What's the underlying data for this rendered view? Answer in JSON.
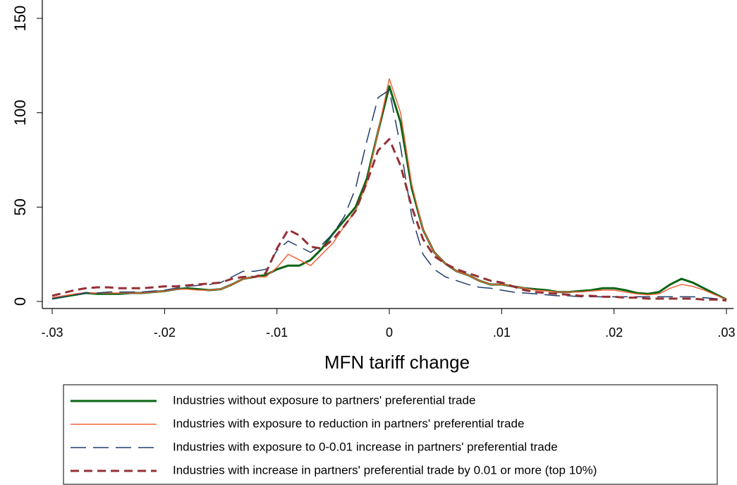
{
  "chart_data": {
    "type": "line",
    "x_label": "MFN tariff change",
    "x": [
      -0.03,
      -0.029,
      -0.028,
      -0.027,
      -0.026,
      -0.025,
      -0.024,
      -0.023,
      -0.022,
      -0.021,
      -0.02,
      -0.019,
      -0.018,
      -0.017,
      -0.016,
      -0.015,
      -0.014,
      -0.013,
      -0.012,
      -0.011,
      -0.01,
      -0.009,
      -0.008,
      -0.007,
      -0.006,
      -0.005,
      -0.004,
      -0.003,
      -0.002,
      -0.001,
      0,
      0.001,
      0.002,
      0.003,
      0.004,
      0.005,
      0.006,
      0.007,
      0.008,
      0.009,
      0.01,
      0.011,
      0.012,
      0.013,
      0.014,
      0.015,
      0.016,
      0.017,
      0.018,
      0.019,
      0.02,
      0.021,
      0.022,
      0.023,
      0.024,
      0.025,
      0.026,
      0.027,
      0.028,
      0.029,
      0.03
    ],
    "series": [
      {
        "name": "Industries without exposure to partners' preferential trade",
        "color": "#0b6414",
        "width": 3,
        "dash": "none",
        "values": [
          1.5,
          2.5,
          3.5,
          4.5,
          4,
          4,
          4,
          4.5,
          4.5,
          5,
          5.5,
          6.5,
          7,
          6.5,
          6,
          6.5,
          9,
          12,
          13,
          14,
          17,
          19,
          19,
          22,
          28,
          36,
          43,
          50,
          65,
          90,
          114,
          95,
          60,
          38,
          26,
          20,
          16,
          14,
          11,
          9,
          9,
          8,
          7,
          6.5,
          6,
          5,
          5,
          5.5,
          6,
          7,
          7,
          6,
          4.5,
          4,
          5,
          9,
          12,
          10,
          7,
          4,
          1
        ]
      },
      {
        "name": "Industries with exposure to reduction in partners' preferential trade",
        "color": "#f0643c",
        "width": 1.5,
        "dash": "none",
        "values": [
          2,
          3,
          4,
          4.5,
          4.5,
          4.5,
          4.5,
          4.5,
          4.5,
          5,
          5.5,
          6.5,
          6.5,
          6,
          6,
          6.5,
          9,
          12,
          13,
          13,
          18,
          25,
          22,
          19,
          25,
          31,
          40,
          48,
          63,
          90,
          118,
          100,
          62,
          38,
          26,
          20,
          16,
          14,
          11,
          9,
          9,
          8,
          7,
          6,
          5.5,
          5,
          5,
          5,
          5.5,
          6,
          6,
          5,
          4,
          3.5,
          4,
          7,
          9,
          8,
          6,
          3.5,
          1
        ]
      },
      {
        "name": "Industries with exposure to 0-0.01 increase in partners' preferential trade",
        "color": "#1f3d6b",
        "width": 1.5,
        "dash": "22 10",
        "values": [
          1.5,
          2.5,
          3.5,
          4.5,
          4.5,
          5,
          5,
          5,
          5,
          5.5,
          6,
          7,
          8,
          8.5,
          9,
          10,
          13,
          16,
          16,
          17,
          27,
          32,
          29,
          26,
          30,
          36,
          45,
          60,
          85,
          108,
          112,
          82,
          45,
          25,
          17,
          13,
          11,
          9,
          7.5,
          7,
          6,
          5,
          4.5,
          4,
          3.5,
          3,
          3,
          2.5,
          2.5,
          2.5,
          2.5,
          2.5,
          2.5,
          2.5,
          2.5,
          2.5,
          2.5,
          2.5,
          2,
          1.5,
          1
        ]
      },
      {
        "name": "Industries with increase in partners' preferential trade by 0.01 or more (top 10%)",
        "color": "#953035",
        "width": 3,
        "dash": "12 7",
        "values": [
          3,
          4.5,
          6,
          7,
          7.5,
          7.5,
          7,
          7,
          7,
          7.5,
          8,
          8,
          8.5,
          9,
          9.5,
          10,
          12,
          13,
          13,
          15,
          28,
          38,
          35,
          29,
          28,
          33,
          40,
          48,
          63,
          80,
          86,
          72,
          50,
          33,
          24,
          20,
          17,
          15,
          13,
          11,
          10,
          8,
          6,
          5,
          4.5,
          4,
          3.5,
          3,
          3,
          2.5,
          2.5,
          2,
          2,
          1.5,
          1.5,
          1.5,
          1.5,
          1.5,
          1,
          1,
          0.5
        ]
      }
    ],
    "xlim": [
      -0.03,
      0.03
    ],
    "xticks": [
      {
        "value": -0.03,
        "label": "-.03"
      },
      {
        "value": -0.02,
        "label": "-.02"
      },
      {
        "value": -0.01,
        "label": "-.01"
      },
      0,
      {
        "value": 0.01,
        "label": ".01"
      },
      {
        "value": 0.02,
        "label": ".02"
      },
      {
        "value": 0.03,
        "label": ".03"
      }
    ],
    "ylim": [
      0,
      150
    ],
    "yticks": [
      0,
      50,
      100,
      150
    ],
    "legend": "bottom"
  }
}
